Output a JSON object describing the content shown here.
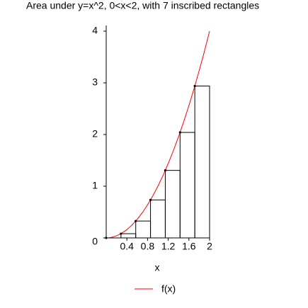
{
  "chart_data": {
    "type": "riemann",
    "title": "Area under y=x^2, 0<x<2, with 7 inscribed rectangles",
    "x_label": "x",
    "xlim": [
      0,
      2
    ],
    "ylim": [
      0,
      4
    ],
    "xticks": [
      0.4,
      0.8,
      1.2,
      1.6,
      2
    ],
    "yticks": [
      0,
      1,
      2,
      3,
      4
    ],
    "curve": {
      "name": "f(x)",
      "color": "#ff0000",
      "x": [
        0,
        0.1,
        0.2,
        0.3,
        0.4,
        0.5,
        0.6,
        0.7,
        0.8,
        0.9,
        1,
        1.1,
        1.2,
        1.3,
        1.4,
        1.5,
        1.6,
        1.7,
        1.8,
        1.9,
        2
      ],
      "values": [
        0,
        0.01,
        0.04,
        0.09,
        0.16,
        0.25,
        0.36,
        0.49,
        0.64,
        0.81,
        1,
        1.21,
        1.44,
        1.69,
        1.96,
        2.25,
        2.56,
        2.89,
        3.24,
        3.61,
        4
      ]
    },
    "rectangles": {
      "color": "#000000",
      "bins": [
        0,
        0.2857,
        0.5714,
        0.8571,
        1.1429,
        1.4286,
        1.7143,
        2
      ],
      "values": [
        0,
        0.0816,
        0.3265,
        0.7347,
        1.3061,
        2.0408,
        2.9388
      ]
    }
  }
}
